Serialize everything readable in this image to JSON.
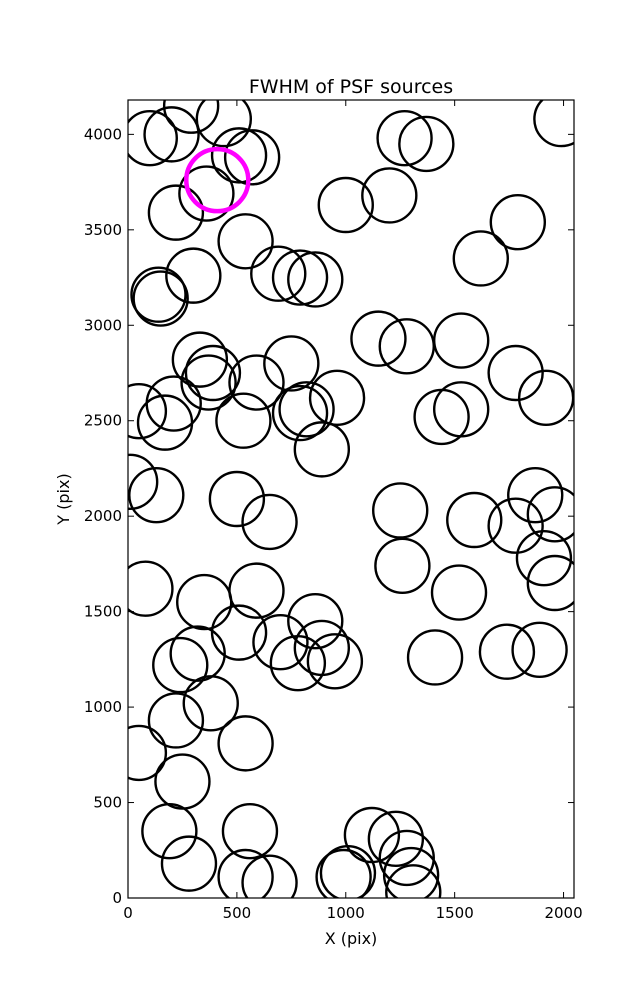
{
  "chart_data": {
    "type": "scatter",
    "title": "FWHM of PSF sources",
    "xlabel": "X (pix)",
    "ylabel": "Y (pix)",
    "xlim": [
      0,
      2048
    ],
    "ylim": [
      0,
      4180
    ],
    "xticks": [
      0,
      500,
      1000,
      1500,
      2000
    ],
    "yticks": [
      0,
      500,
      1000,
      1500,
      2000,
      2500,
      3000,
      3500,
      4000
    ],
    "grid": false,
    "marker": "open-circle",
    "marker_color": "#000000",
    "highlight_color": "#ff00ff",
    "series": [
      {
        "points": [
          [
            100,
            3980
          ],
          [
            200,
            4000
          ],
          [
            290,
            4150
          ],
          [
            440,
            4080
          ],
          [
            510,
            3890
          ],
          [
            570,
            3880
          ],
          [
            360,
            3690
          ],
          [
            220,
            3590
          ],
          [
            540,
            3440
          ],
          [
            1000,
            3630
          ],
          [
            1200,
            3680
          ],
          [
            1270,
            3980
          ],
          [
            1370,
            3950
          ],
          [
            1790,
            3540
          ],
          [
            1620,
            3350
          ],
          [
            1990,
            4080
          ],
          [
            300,
            3260
          ],
          [
            140,
            3160
          ],
          [
            150,
            3140
          ],
          [
            690,
            3270
          ],
          [
            790,
            3250
          ],
          [
            860,
            3240
          ],
          [
            1150,
            2930
          ],
          [
            1280,
            2890
          ],
          [
            1530,
            2920
          ],
          [
            1780,
            2750
          ],
          [
            1920,
            2620
          ],
          [
            330,
            2820
          ],
          [
            390,
            2750
          ],
          [
            370,
            2700
          ],
          [
            590,
            2700
          ],
          [
            750,
            2800
          ],
          [
            50,
            2550
          ],
          [
            210,
            2590
          ],
          [
            170,
            2490
          ],
          [
            530,
            2500
          ],
          [
            790,
            2540
          ],
          [
            820,
            2560
          ],
          [
            960,
            2620
          ],
          [
            890,
            2350
          ],
          [
            1440,
            2520
          ],
          [
            1530,
            2560
          ],
          [
            10,
            2180
          ],
          [
            130,
            2110
          ],
          [
            500,
            2090
          ],
          [
            650,
            1970
          ],
          [
            1250,
            2030
          ],
          [
            1590,
            1980
          ],
          [
            1780,
            1950
          ],
          [
            1870,
            2110
          ],
          [
            1960,
            2010
          ],
          [
            1910,
            1780
          ],
          [
            1960,
            1650
          ],
          [
            80,
            1620
          ],
          [
            350,
            1550
          ],
          [
            590,
            1610
          ],
          [
            510,
            1390
          ],
          [
            320,
            1280
          ],
          [
            240,
            1220
          ],
          [
            700,
            1340
          ],
          [
            780,
            1230
          ],
          [
            860,
            1450
          ],
          [
            890,
            1310
          ],
          [
            950,
            1240
          ],
          [
            1410,
            1260
          ],
          [
            1520,
            1600
          ],
          [
            1260,
            1740
          ],
          [
            1740,
            1290
          ],
          [
            1890,
            1300
          ],
          [
            50,
            760
          ],
          [
            220,
            930
          ],
          [
            380,
            1020
          ],
          [
            540,
            810
          ],
          [
            250,
            610
          ],
          [
            190,
            350
          ],
          [
            280,
            180
          ],
          [
            560,
            350
          ],
          [
            540,
            110
          ],
          [
            650,
            80
          ],
          [
            990,
            110
          ],
          [
            1010,
            130
          ],
          [
            1120,
            330
          ],
          [
            1230,
            310
          ],
          [
            1280,
            210
          ],
          [
            1300,
            120
          ],
          [
            1310,
            30
          ]
        ],
        "highlight": [
          410,
          3760
        ]
      }
    ]
  }
}
